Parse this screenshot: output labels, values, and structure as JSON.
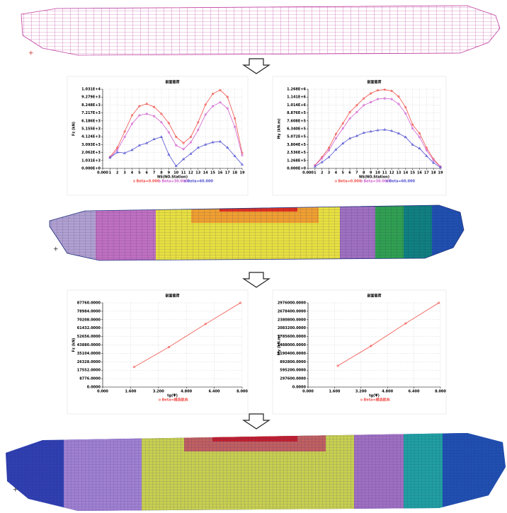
{
  "chart_data": [
    {
      "type": "line",
      "title": "剖面载荷",
      "xlabel": "NS(NO.Station)",
      "ylabel": "Fz (kN)",
      "x": [
        1,
        2,
        3,
        4,
        5,
        6,
        7,
        8,
        9,
        10,
        11,
        12,
        13,
        14,
        15,
        16,
        17,
        18,
        19
      ],
      "xlim": [
        0,
        19
      ],
      "xticks": [
        {
          "value": 0,
          "label": "0.000"
        },
        1,
        2,
        3,
        4,
        5,
        6,
        7,
        8,
        9,
        10,
        11,
        12,
        13,
        14,
        15,
        16,
        17,
        18,
        19
      ],
      "ylim": [
        0,
        10310
      ],
      "yticks": [
        {
          "value": 0,
          "label": "0.000E+0"
        },
        {
          "value": 1031,
          "label": "1.031E+3"
        },
        {
          "value": 2062,
          "label": "2.062E+3"
        },
        {
          "value": 3093,
          "label": "3.093E+3"
        },
        {
          "value": 4124,
          "label": "4.124E+3"
        },
        {
          "value": 5155,
          "label": "5.155E+3"
        },
        {
          "value": 6186,
          "label": "6.186E+3"
        },
        {
          "value": 7217,
          "label": "7.217E+3"
        },
        {
          "value": 8248,
          "label": "8.248E+3"
        },
        {
          "value": 9279,
          "label": "9.279E+3"
        },
        {
          "value": 10310,
          "label": "1.031E+4"
        }
      ],
      "grid": true,
      "series": [
        {
          "name": "Beta=0.000",
          "color": "#f0504a",
          "values": [
            1500,
            2700,
            4800,
            6900,
            8100,
            8400,
            8000,
            7100,
            5900,
            4100,
            3300,
            4100,
            6000,
            8300,
            9700,
            10200,
            9300,
            6500,
            2000
          ]
        },
        {
          "name": "Beta=30.000",
          "color": "#d060d0",
          "values": [
            1400,
            2400,
            4100,
            5800,
            6900,
            7100,
            6800,
            6000,
            4700,
            3000,
            2500,
            3400,
            5000,
            7000,
            8100,
            8600,
            7800,
            5400,
            1700
          ]
        },
        {
          "name": "Beta=60.000",
          "color": "#5050d0",
          "values": [
            1400,
            2100,
            2000,
            2400,
            3000,
            3300,
            3800,
            4100,
            1800,
            300,
            1200,
            1900,
            2700,
            3100,
            3400,
            3500,
            2700,
            1600,
            500
          ]
        }
      ]
    },
    {
      "type": "line",
      "title": "剖面载荷",
      "xlabel": "NS(NO.Station)",
      "ylabel": "My (kN.m)",
      "x": [
        1,
        2,
        3,
        4,
        5,
        6,
        7,
        8,
        9,
        10,
        11,
        12,
        13,
        14,
        15,
        16,
        17,
        18,
        19
      ],
      "xlim": [
        0,
        19
      ],
      "xticks": [
        {
          "value": 0,
          "label": "0.000"
        },
        1,
        2,
        3,
        4,
        5,
        6,
        7,
        8,
        9,
        10,
        11,
        12,
        13,
        14,
        15,
        16,
        17,
        18,
        19
      ],
      "ylim": [
        0,
        1268000
      ],
      "yticks": [
        {
          "value": 0,
          "label": "0.000E+0"
        },
        {
          "value": 126800,
          "label": "1.268E+5"
        },
        {
          "value": 253600,
          "label": "2.536E+5"
        },
        {
          "value": 380400,
          "label": "3.804E+5"
        },
        {
          "value": 507200,
          "label": "5.072E+5"
        },
        {
          "value": 634000,
          "label": "6.340E+5"
        },
        {
          "value": 760800,
          "label": "7.608E+5"
        },
        {
          "value": 887600,
          "label": "8.876E+5"
        },
        {
          "value": 1014400,
          "label": "1.014E+6"
        },
        {
          "value": 1141200,
          "label": "1.141E+6"
        },
        {
          "value": 1268000,
          "label": "1.268E+6"
        }
      ],
      "grid": true,
      "series": [
        {
          "name": "Beta=0.000",
          "color": "#f0504a",
          "values": [
            50000,
            180000,
            330000,
            550000,
            720000,
            900000,
            1010000,
            1120000,
            1200000,
            1250000,
            1260000,
            1240000,
            1150000,
            980000,
            700000,
            560000,
            330000,
            150000,
            30000
          ]
        },
        {
          "name": "Beta=30.000",
          "color": "#d060d0",
          "values": [
            45000,
            160000,
            290000,
            480000,
            640000,
            800000,
            900000,
            1010000,
            1060000,
            1110000,
            1120000,
            1110000,
            1030000,
            880000,
            640000,
            500000,
            290000,
            130000,
            25000
          ]
        },
        {
          "name": "Beta=60.000",
          "color": "#5050d0",
          "values": [
            30000,
            100000,
            180000,
            300000,
            400000,
            480000,
            520000,
            570000,
            590000,
            610000,
            620000,
            600000,
            560000,
            500000,
            380000,
            320000,
            200000,
            90000,
            15000
          ]
        }
      ]
    },
    {
      "type": "line",
      "title": "剖面载荷",
      "xlabel": "tg(Ψ)",
      "ylabel": "Fz (kN)",
      "x": [
        1.8,
        3.8,
        5.9,
        7.9
      ],
      "xlim": [
        0,
        8
      ],
      "xticks": [
        {
          "value": 0,
          "label": "0.000"
        },
        {
          "value": 1.6,
          "label": "1.600"
        },
        {
          "value": 3.2,
          "label": "3.200"
        },
        {
          "value": 4.8,
          "label": "4.800"
        },
        {
          "value": 6.4,
          "label": "6.400"
        },
        {
          "value": 8,
          "label": "8.000"
        }
      ],
      "ylim": [
        0,
        87760
      ],
      "yticks": [
        {
          "value": 0,
          "label": "0.0000"
        },
        {
          "value": 8776,
          "label": "8776.0000"
        },
        {
          "value": 17552,
          "label": "17552.0000"
        },
        {
          "value": 26328,
          "label": "26328.0000"
        },
        {
          "value": 35104,
          "label": "35104.0000"
        },
        {
          "value": 43880,
          "label": "43880.0000"
        },
        {
          "value": 52656,
          "label": "52656.0000"
        },
        {
          "value": 61432,
          "label": "61432.0000"
        },
        {
          "value": 70208,
          "label": "70208.0000"
        },
        {
          "value": 78984,
          "label": "78984.0000"
        },
        {
          "value": 87760,
          "label": "87760.0000"
        }
      ],
      "grid": true,
      "series": [
        {
          "name": "Beta=横浪航向",
          "color": "#f0504a",
          "values": [
            20800,
            41700,
            65700,
            87760
          ]
        }
      ]
    },
    {
      "type": "line",
      "title": "剖面载荷",
      "xlabel": "tg(Ψ)",
      "ylabel": "My (kN.m)",
      "x": [
        1.8,
        3.8,
        5.9,
        7.9
      ],
      "xlim": [
        0,
        8
      ],
      "xticks": [
        {
          "value": 0,
          "label": "0.000"
        },
        {
          "value": 1.6,
          "label": "1.600"
        },
        {
          "value": 3.2,
          "label": "3.200"
        },
        {
          "value": 4.8,
          "label": "4.800"
        },
        {
          "value": 6.4,
          "label": "6.400"
        },
        {
          "value": 8,
          "label": "8.000"
        }
      ],
      "ylim": [
        0,
        2976000
      ],
      "yticks": [
        {
          "value": 0,
          "label": "0.0000"
        },
        {
          "value": 297600,
          "label": "297600.0000"
        },
        {
          "value": 595200,
          "label": "595200.0000"
        },
        {
          "value": 892800,
          "label": "892800.0000"
        },
        {
          "value": 1190400,
          "label": "1190400.0000"
        },
        {
          "value": 1488000,
          "label": "1488000.0000"
        },
        {
          "value": 1785600,
          "label": "1785600.0000"
        },
        {
          "value": 2083200,
          "label": "2083200.0000"
        },
        {
          "value": 2380800,
          "label": "2380800.0000"
        },
        {
          "value": 2678400,
          "label": "2678400.0000"
        },
        {
          "value": 2976000,
          "label": "2976000.0000"
        }
      ],
      "grid": true,
      "series": [
        {
          "name": "Beta=横浪航向",
          "color": "#f0504a",
          "values": [
            750000,
            1450000,
            2250000,
            2976000
          ]
        }
      ]
    }
  ]
}
